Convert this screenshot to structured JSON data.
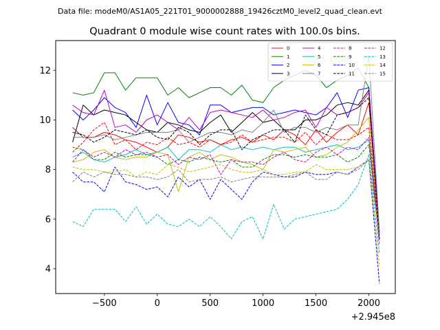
{
  "suptitle": "Data file: modeM0/AS1A05_221T01_9000002888_19426cztM0_level2_quad_clean.evt",
  "chart_data": {
    "type": "line",
    "title": "Quadrant 0 module wise count rates with 100.0s bins.",
    "xlabel": "",
    "ylabel": "",
    "x_offset_label": "+2.945e8",
    "xlim": [
      -960,
      2250
    ],
    "ylim": [
      3.0,
      13.2
    ],
    "x_ticks": [
      -500,
      0,
      500,
      1000,
      1500,
      2000
    ],
    "x_tick_labels": [
      "−500",
      "0",
      "500",
      "1000",
      "1500",
      "2000"
    ],
    "y_ticks": [
      4,
      6,
      8,
      10,
      12
    ],
    "y_tick_labels": [
      "4",
      "6",
      "8",
      "10",
      "12"
    ],
    "legend_position": "top-right",
    "x": [
      -800,
      -700,
      -600,
      -500,
      -400,
      -300,
      -200,
      -100,
      0,
      100,
      200,
      300,
      400,
      500,
      600,
      700,
      800,
      900,
      1000,
      1100,
      1200,
      1300,
      1400,
      1500,
      1600,
      1700,
      1800,
      1900,
      2000,
      2100
    ],
    "series": [
      {
        "name": "0",
        "color": "#ff0000",
        "dash": "solid",
        "values": [
          9.7,
          9.3,
          9.3,
          9.5,
          9.4,
          9.2,
          9.1,
          8.9,
          8.7,
          8.9,
          9.4,
          9.3,
          9.1,
          9.2,
          9.0,
          9.2,
          9.3,
          9.1,
          9.4,
          9.2,
          9.6,
          9.4,
          9.0,
          9.6,
          9.1,
          9.5,
          9.8,
          9.4,
          10.7,
          5.5
        ]
      },
      {
        "name": "1",
        "color": "#008000",
        "dash": "solid",
        "values": [
          11.1,
          11.0,
          11.1,
          11.9,
          11.9,
          11.2,
          11.7,
          11.7,
          11.7,
          11.0,
          11.3,
          10.9,
          11.1,
          11.3,
          11.3,
          11.0,
          11.4,
          10.8,
          10.7,
          11.3,
          11.6,
          11.8,
          12.0,
          11.8,
          11.3,
          11.6,
          11.8,
          12.1,
          11.3,
          5.4
        ]
      },
      {
        "name": "2",
        "color": "#0000ff",
        "dash": "solid",
        "values": [
          10.4,
          10.0,
          10.4,
          10.9,
          10.5,
          10.3,
          9.7,
          11.0,
          9.8,
          10.7,
          9.9,
          9.8,
          9.4,
          10.6,
          10.6,
          10.3,
          10.4,
          10.5,
          10.5,
          10.2,
          10.3,
          10.4,
          10.3,
          10.2,
          10.5,
          11.1,
          10.1,
          11.2,
          11.3,
          5.5
        ]
      },
      {
        "name": "3",
        "color": "#000000",
        "dash": "solid",
        "values": [
          9.1,
          10.6,
          10.2,
          10.4,
          10.3,
          10.2,
          9.9,
          9.6,
          9.5,
          9.9,
          9.8,
          9.6,
          9.5,
          9.9,
          10.2,
          9.5,
          9.9,
          10.3,
          9.9,
          10.0,
          9.6,
          9.6,
          10.0,
          10.0,
          10.2,
          10.6,
          10.7,
          10.6,
          11.2,
          5.4
        ]
      },
      {
        "name": "4",
        "color": "#bf00bf",
        "dash": "solid",
        "values": [
          10.6,
          10.3,
          10.2,
          11.2,
          9.7,
          9.8,
          9.5,
          10.0,
          10.2,
          9.9,
          9.6,
          10.1,
          9.6,
          10.3,
          10.4,
          10.3,
          10.2,
          10.1,
          10.4,
          10.0,
          10.1,
          10.3,
          10.4,
          9.7,
          10.5,
          10.2,
          10.3,
          10.5,
          11.1,
          5.4
        ]
      },
      {
        "name": "5",
        "color": "#00bfbf",
        "dash": "solid",
        "values": [
          8.5,
          8.7,
          8.4,
          8.3,
          8.5,
          8.6,
          8.8,
          8.6,
          8.7,
          8.9,
          8.4,
          8.8,
          8.8,
          8.7,
          9.0,
          8.8,
          8.9,
          8.8,
          8.9,
          8.8,
          8.9,
          8.9,
          8.7,
          8.8,
          8.9,
          9.0,
          8.8,
          8.9,
          9.2,
          5.4
        ]
      },
      {
        "name": "6",
        "color": "#bfbf00",
        "dash": "solid",
        "values": [
          8.3,
          8.4,
          8.7,
          8.8,
          8.5,
          8.4,
          8.5,
          8.5,
          8.7,
          8.6,
          7.1,
          8.5,
          8.7,
          8.4,
          8.6,
          8.5,
          8.3,
          8.2,
          8.0,
          8.8,
          8.7,
          8.8,
          8.9,
          8.5,
          8.6,
          8.9,
          9.1,
          9.6,
          10.1,
          5.3
        ]
      },
      {
        "name": "7",
        "color": "#808080",
        "dash": "solid",
        "values": [
          9.3,
          9.3,
          9.3,
          9.4,
          9.2,
          9.3,
          9.4,
          9.5,
          9.5,
          9.5,
          9.6,
          9.1,
          9.3,
          9.5,
          9.5,
          9.4,
          9.6,
          9.5,
          9.9,
          10.4,
          9.5,
          9.7,
          9.7,
          9.5,
          9.7,
          9.6,
          9.8,
          9.8,
          12.6,
          5.5
        ]
      },
      {
        "name": "8",
        "color": "#ff0000",
        "dash": "dashed",
        "values": [
          8.7,
          9.1,
          9.6,
          9.9,
          9.0,
          9.2,
          8.8,
          9.1,
          9.0,
          9.3,
          9.0,
          9.1,
          8.9,
          9.2,
          9.0,
          9.1,
          9.4,
          9.1,
          9.2,
          9.3,
          9.3,
          9.1,
          9.5,
          9.0,
          9.4,
          9.2,
          9.2,
          9.4,
          9.7,
          5.2
        ]
      },
      {
        "name": "9",
        "color": "#008000",
        "dash": "dashed",
        "values": [
          8.9,
          8.8,
          8.4,
          8.4,
          8.7,
          8.5,
          8.6,
          8.6,
          8.5,
          8.2,
          8.4,
          8.3,
          8.5,
          8.4,
          8.3,
          8.4,
          8.1,
          8.1,
          8.4,
          8.6,
          8.6,
          8.5,
          8.6,
          8.5,
          8.5,
          8.6,
          8.3,
          8.5,
          9.0,
          5.2
        ]
      },
      {
        "name": "10",
        "color": "#0000ff",
        "dash": "dashed",
        "values": [
          7.9,
          7.5,
          7.5,
          7.1,
          8.1,
          7.5,
          7.4,
          7.2,
          7.3,
          6.9,
          7.7,
          7.3,
          7.6,
          6.8,
          7.6,
          7.2,
          6.8,
          7.5,
          7.9,
          7.8,
          7.7,
          7.7,
          7.9,
          7.8,
          7.8,
          7.9,
          7.8,
          8.1,
          8.4,
          3.4
        ]
      },
      {
        "name": "11",
        "color": "#000000",
        "dash": "dashed",
        "values": [
          9.5,
          9.4,
          9.1,
          9.3,
          9.6,
          9.5,
          9.4,
          9.6,
          9.3,
          9.2,
          9.7,
          9.5,
          9.0,
          9.4,
          9.6,
          9.6,
          8.8,
          9.2,
          9.4,
          9.6,
          9.6,
          9.1,
          10.2,
          9.6,
          9.4,
          10.2,
          10.3,
          10.5,
          10.9,
          5.2
        ]
      },
      {
        "name": "12",
        "color": "#bf00bf",
        "dash": "dashed",
        "values": [
          8.3,
          8.8,
          8.5,
          8.7,
          8.5,
          8.8,
          8.6,
          8.7,
          8.5,
          8.6,
          8.2,
          8.5,
          8.4,
          8.6,
          7.8,
          8.4,
          8.3,
          8.3,
          8.2,
          8.5,
          8.7,
          8.4,
          8.3,
          8.7,
          8.9,
          8.6,
          8.9,
          8.8,
          9.3,
          5.0
        ]
      },
      {
        "name": "13",
        "color": "#00bfbf",
        "dash": "dashed",
        "values": [
          5.9,
          5.7,
          6.4,
          6.4,
          6.4,
          5.9,
          6.5,
          5.8,
          6.2,
          5.8,
          5.7,
          6.0,
          5.7,
          6.1,
          5.7,
          5.2,
          5.9,
          6.1,
          5.2,
          6.6,
          5.6,
          6.0,
          6.1,
          6.2,
          6.3,
          6.4,
          6.8,
          7.4,
          8.6,
          4.6
        ]
      },
      {
        "name": "14",
        "color": "#bfbf00",
        "dash": "dashed",
        "values": [
          8.1,
          8.0,
          8.0,
          7.9,
          7.9,
          8.0,
          7.7,
          7.9,
          7.8,
          8.2,
          8.1,
          7.9,
          8.0,
          8.1,
          8.2,
          8.0,
          7.9,
          7.9,
          8.0,
          7.8,
          7.8,
          7.9,
          7.9,
          8.2,
          8.0,
          8.0,
          8.0,
          8.1,
          8.4,
          4.1
        ]
      },
      {
        "name": "15",
        "color": "#808080",
        "dash": "dashed",
        "values": [
          7.5,
          7.9,
          7.7,
          7.9,
          7.8,
          7.8,
          7.7,
          7.7,
          7.6,
          7.7,
          8.0,
          7.5,
          7.6,
          7.6,
          7.7,
          7.5,
          7.6,
          7.7,
          7.7,
          7.7,
          7.7,
          7.8,
          7.9,
          7.6,
          7.6,
          7.9,
          7.8,
          8.0,
          8.4,
          5.4
        ]
      }
    ]
  }
}
